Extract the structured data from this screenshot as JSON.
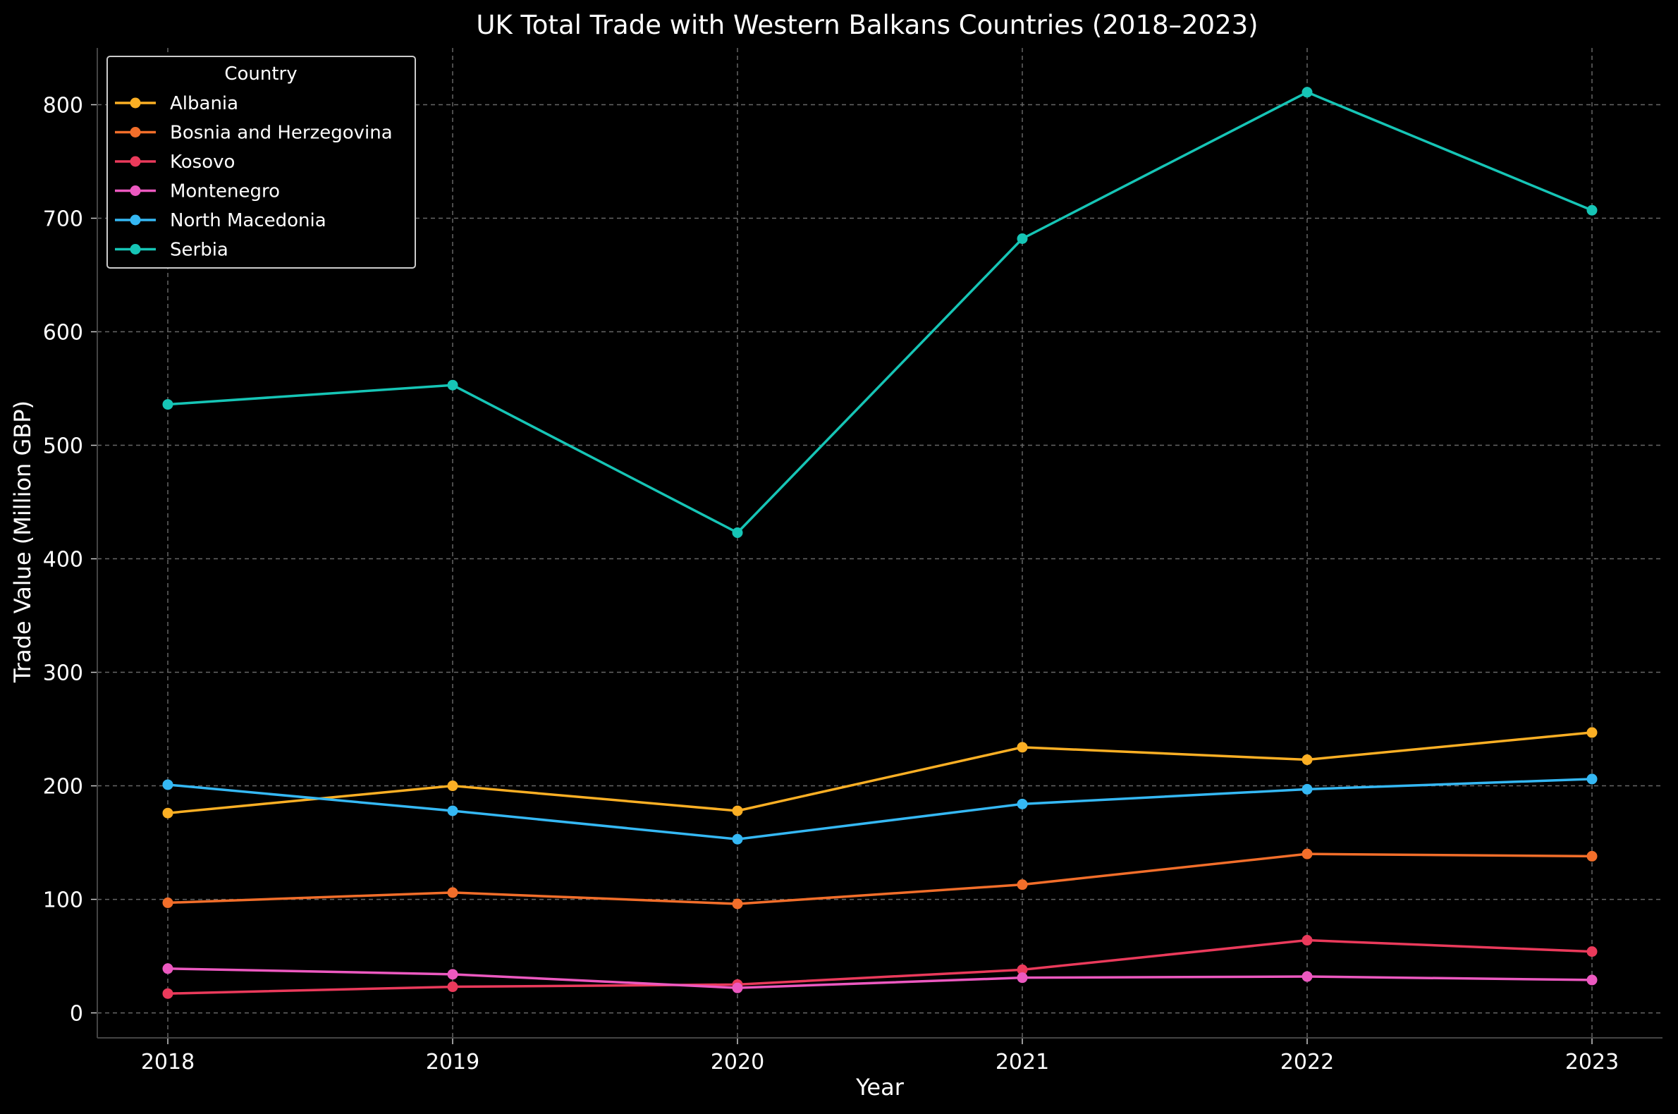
{
  "chart_data": {
    "type": "line",
    "title": "UK Total Trade with Western Balkans Countries (2018–2023)",
    "xlabel": "Year",
    "ylabel": "Trade Value (Million GBP)",
    "x": [
      "2018",
      "2019",
      "2020",
      "2021",
      "2022",
      "2023"
    ],
    "ylim": [
      -22,
      850
    ],
    "yticks": [
      "0",
      "100",
      "200",
      "300",
      "400",
      "500",
      "600",
      "700",
      "800"
    ],
    "grid": true,
    "legend": {
      "title": "Country",
      "placement": "top-left"
    },
    "series": [
      {
        "name": "Albania",
        "color": "#fbaf24",
        "values": [
          176,
          200,
          178,
          234,
          223,
          247
        ]
      },
      {
        "name": "Bosnia and Herzegovina",
        "color": "#f26e2a",
        "values": [
          97,
          106,
          96,
          113,
          140,
          138
        ]
      },
      {
        "name": "Kosovo",
        "color": "#ea3a5b",
        "values": [
          17,
          23,
          25,
          38,
          64,
          54
        ]
      },
      {
        "name": "Montenegro",
        "color": "#ec59c0",
        "values": [
          39,
          34,
          22,
          31,
          32,
          29
        ]
      },
      {
        "name": "North Macedonia",
        "color": "#35b8f4",
        "values": [
          201,
          178,
          153,
          184,
          197,
          206
        ]
      },
      {
        "name": "Serbia",
        "color": "#16c5b6",
        "values": [
          536,
          553,
          423,
          682,
          811,
          707
        ]
      }
    ]
  }
}
